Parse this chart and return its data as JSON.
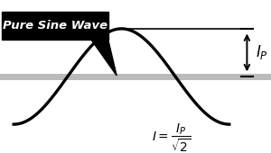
{
  "background_color": "#ffffff",
  "sine_color": "#000000",
  "sine_linewidth": 2.4,
  "axis_color": "#bbbbbb",
  "axis_linewidth": 5.0,
  "amplitude": 1.0,
  "label_text": "Pure Sine Wave",
  "label_box_color": "#000000",
  "label_text_color": "#ffffff",
  "label_fontsize": 9.5,
  "arrow_color": "#000000",
  "formula_text": "$I = \\dfrac{I_P}{\\sqrt{2}}$",
  "ip_label": "$I_P$",
  "ip_fontsize": 12,
  "formula_fontsize": 10,
  "fig_width": 3.0,
  "fig_height": 1.7,
  "dpi": 100
}
